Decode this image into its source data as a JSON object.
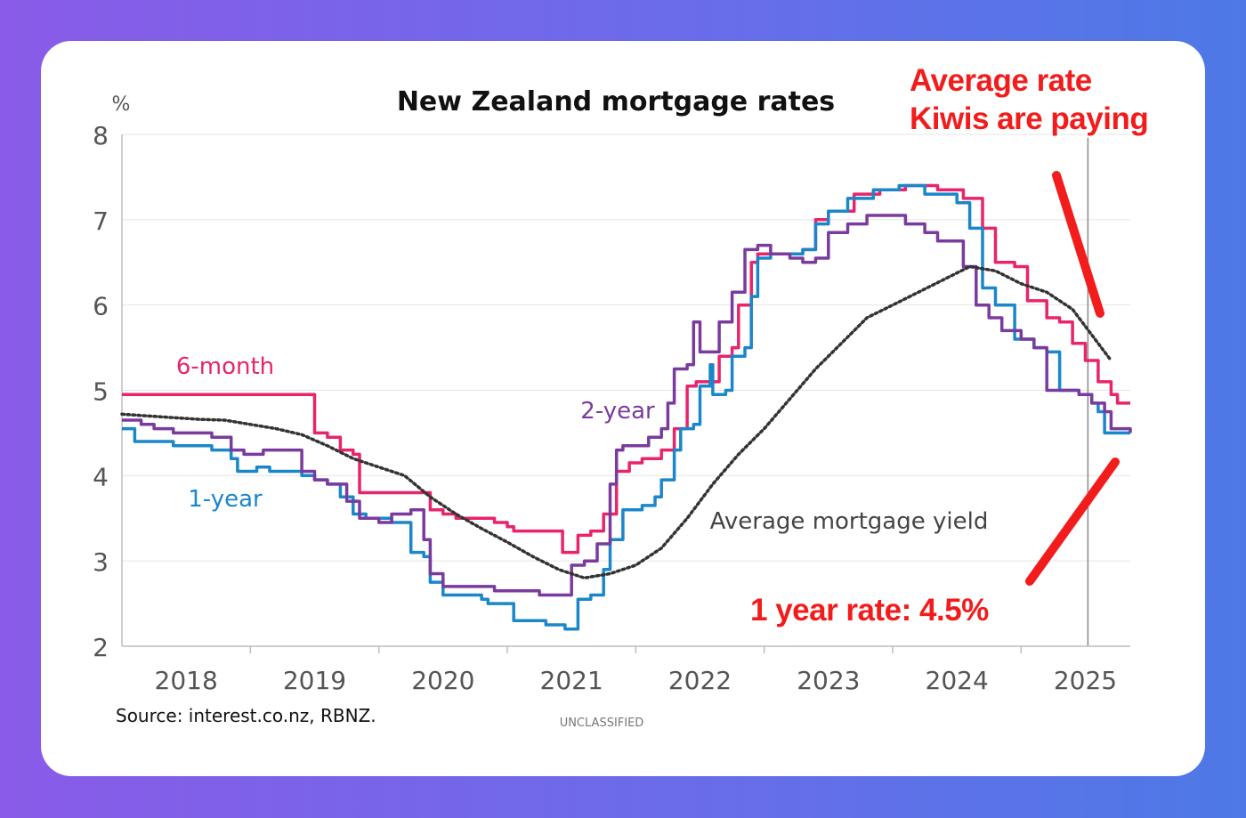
{
  "chart_data": {
    "type": "line",
    "title": "New Zealand mortgage rates",
    "ylabel": "%",
    "ylim": [
      2,
      8
    ],
    "yticks": [
      2,
      3,
      4,
      5,
      6,
      7,
      8
    ],
    "xlim": [
      2017.5,
      2025.35
    ],
    "xticks": [
      {
        "label": "2018",
        "value": 2018.0
      },
      {
        "label": "2019",
        "value": 2019.0
      },
      {
        "label": "2020",
        "value": 2020.0
      },
      {
        "label": "2021",
        "value": 2021.0
      },
      {
        "label": "2022",
        "value": 2022.0
      },
      {
        "label": "2023",
        "value": 2023.0
      },
      {
        "label": "2024",
        "value": 2024.0
      },
      {
        "label": "2025",
        "value": 2025.0
      }
    ],
    "source": "Source: interest.co.nz, RBNZ.",
    "classification": "UNCLASSIFIED",
    "series": [
      {
        "name": "6-month",
        "label": "6-month",
        "color": "#e8246c",
        "style": "step",
        "points": [
          [
            2017.5,
            4.95
          ],
          [
            2018.95,
            4.95
          ],
          [
            2019.0,
            4.5
          ],
          [
            2019.1,
            4.45
          ],
          [
            2019.2,
            4.3
          ],
          [
            2019.3,
            4.25
          ],
          [
            2019.35,
            3.8
          ],
          [
            2019.85,
            3.8
          ],
          [
            2019.9,
            3.6
          ],
          [
            2020.0,
            3.55
          ],
          [
            2020.1,
            3.5
          ],
          [
            2020.4,
            3.45
          ],
          [
            2020.5,
            3.4
          ],
          [
            2020.55,
            3.35
          ],
          [
            2020.9,
            3.35
          ],
          [
            2020.93,
            3.1
          ],
          [
            2021.0,
            3.1
          ],
          [
            2021.05,
            3.3
          ],
          [
            2021.15,
            3.35
          ],
          [
            2021.25,
            3.55
          ],
          [
            2021.35,
            4.05
          ],
          [
            2021.45,
            4.15
          ],
          [
            2021.55,
            4.2
          ],
          [
            2021.7,
            4.3
          ],
          [
            2021.8,
            4.55
          ],
          [
            2021.9,
            5.05
          ],
          [
            2021.97,
            5.1
          ],
          [
            2022.05,
            5.1
          ],
          [
            2022.15,
            5.4
          ],
          [
            2022.25,
            5.5
          ],
          [
            2022.3,
            6.0
          ],
          [
            2022.4,
            6.5
          ],
          [
            2022.45,
            6.6
          ],
          [
            2022.6,
            6.6
          ],
          [
            2022.7,
            6.6
          ],
          [
            2022.8,
            6.65
          ],
          [
            2022.9,
            7.0
          ],
          [
            2023.0,
            7.1
          ],
          [
            2023.2,
            7.3
          ],
          [
            2023.4,
            7.35
          ],
          [
            2023.6,
            7.4
          ],
          [
            2023.85,
            7.35
          ],
          [
            2024.05,
            7.25
          ],
          [
            2024.2,
            6.9
          ],
          [
            2024.3,
            6.5
          ],
          [
            2024.45,
            6.45
          ],
          [
            2024.55,
            6.05
          ],
          [
            2024.7,
            5.85
          ],
          [
            2024.8,
            5.8
          ],
          [
            2024.9,
            5.55
          ],
          [
            2025.0,
            5.35
          ],
          [
            2025.1,
            5.1
          ],
          [
            2025.2,
            4.95
          ],
          [
            2025.25,
            4.85
          ],
          [
            2025.35,
            4.85
          ]
        ]
      },
      {
        "name": "1-year",
        "label": "1-year",
        "color": "#1b87c9",
        "style": "step",
        "points": [
          [
            2017.5,
            4.55
          ],
          [
            2017.6,
            4.4
          ],
          [
            2017.85,
            4.4
          ],
          [
            2017.9,
            4.35
          ],
          [
            2018.2,
            4.3
          ],
          [
            2018.35,
            4.2
          ],
          [
            2018.4,
            4.05
          ],
          [
            2018.55,
            4.1
          ],
          [
            2018.65,
            4.05
          ],
          [
            2018.9,
            4.0
          ],
          [
            2019.0,
            3.95
          ],
          [
            2019.1,
            3.9
          ],
          [
            2019.2,
            3.75
          ],
          [
            2019.3,
            3.55
          ],
          [
            2019.4,
            3.5
          ],
          [
            2019.6,
            3.45
          ],
          [
            2019.7,
            3.45
          ],
          [
            2019.75,
            3.1
          ],
          [
            2019.85,
            3.05
          ],
          [
            2019.9,
            2.75
          ],
          [
            2020.0,
            2.6
          ],
          [
            2020.3,
            2.55
          ],
          [
            2020.35,
            2.5
          ],
          [
            2020.5,
            2.5
          ],
          [
            2020.55,
            2.3
          ],
          [
            2020.75,
            2.3
          ],
          [
            2020.8,
            2.25
          ],
          [
            2020.95,
            2.2
          ],
          [
            2021.0,
            2.2
          ],
          [
            2021.05,
            2.55
          ],
          [
            2021.15,
            2.6
          ],
          [
            2021.25,
            2.9
          ],
          [
            2021.3,
            3.25
          ],
          [
            2021.4,
            3.6
          ],
          [
            2021.55,
            3.65
          ],
          [
            2021.65,
            3.75
          ],
          [
            2021.7,
            3.95
          ],
          [
            2021.8,
            4.3
          ],
          [
            2021.85,
            4.55
          ],
          [
            2021.95,
            4.6
          ],
          [
            2022.0,
            5.05
          ],
          [
            2022.08,
            5.3
          ],
          [
            2022.1,
            4.95
          ],
          [
            2022.2,
            5.0
          ],
          [
            2022.25,
            5.4
          ],
          [
            2022.35,
            5.5
          ],
          [
            2022.4,
            6.1
          ],
          [
            2022.45,
            6.55
          ],
          [
            2022.55,
            6.6
          ],
          [
            2022.7,
            6.6
          ],
          [
            2022.8,
            6.65
          ],
          [
            2022.9,
            6.95
          ],
          [
            2023.0,
            7.1
          ],
          [
            2023.15,
            7.25
          ],
          [
            2023.35,
            7.35
          ],
          [
            2023.55,
            7.4
          ],
          [
            2023.75,
            7.3
          ],
          [
            2024.0,
            7.2
          ],
          [
            2024.1,
            6.9
          ],
          [
            2024.2,
            6.2
          ],
          [
            2024.3,
            6.0
          ],
          [
            2024.45,
            5.6
          ],
          [
            2024.6,
            5.5
          ],
          [
            2024.7,
            5.45
          ],
          [
            2024.8,
            5.0
          ],
          [
            2024.95,
            4.95
          ],
          [
            2025.05,
            4.85
          ],
          [
            2025.1,
            4.75
          ],
          [
            2025.15,
            4.5
          ],
          [
            2025.35,
            4.5
          ]
        ]
      },
      {
        "name": "2-year",
        "label": "2-year",
        "color": "#7a3b9e",
        "style": "step",
        "points": [
          [
            2017.5,
            4.65
          ],
          [
            2017.65,
            4.6
          ],
          [
            2017.75,
            4.55
          ],
          [
            2017.9,
            4.5
          ],
          [
            2018.2,
            4.45
          ],
          [
            2018.35,
            4.3
          ],
          [
            2018.45,
            4.25
          ],
          [
            2018.6,
            4.3
          ],
          [
            2018.9,
            4.05
          ],
          [
            2019.0,
            3.95
          ],
          [
            2019.1,
            3.9
          ],
          [
            2019.25,
            3.7
          ],
          [
            2019.35,
            3.5
          ],
          [
            2019.5,
            3.45
          ],
          [
            2019.6,
            3.55
          ],
          [
            2019.75,
            3.6
          ],
          [
            2019.85,
            3.25
          ],
          [
            2019.9,
            2.85
          ],
          [
            2020.0,
            2.7
          ],
          [
            2020.2,
            2.7
          ],
          [
            2020.4,
            2.65
          ],
          [
            2020.6,
            2.65
          ],
          [
            2020.75,
            2.6
          ],
          [
            2020.9,
            2.6
          ],
          [
            2020.95,
            2.6
          ],
          [
            2021.0,
            2.95
          ],
          [
            2021.1,
            3.0
          ],
          [
            2021.2,
            3.2
          ],
          [
            2021.3,
            3.9
          ],
          [
            2021.35,
            4.3
          ],
          [
            2021.4,
            4.35
          ],
          [
            2021.6,
            4.45
          ],
          [
            2021.7,
            4.55
          ],
          [
            2021.75,
            4.85
          ],
          [
            2021.8,
            5.25
          ],
          [
            2021.9,
            5.3
          ],
          [
            2021.95,
            5.8
          ],
          [
            2022.0,
            5.45
          ],
          [
            2022.1,
            5.45
          ],
          [
            2022.15,
            5.8
          ],
          [
            2022.25,
            6.15
          ],
          [
            2022.35,
            6.65
          ],
          [
            2022.45,
            6.7
          ],
          [
            2022.55,
            6.6
          ],
          [
            2022.7,
            6.55
          ],
          [
            2022.8,
            6.5
          ],
          [
            2022.9,
            6.55
          ],
          [
            2023.0,
            6.85
          ],
          [
            2023.15,
            6.95
          ],
          [
            2023.3,
            7.05
          ],
          [
            2023.45,
            7.05
          ],
          [
            2023.6,
            6.95
          ],
          [
            2023.75,
            6.85
          ],
          [
            2023.85,
            6.75
          ],
          [
            2023.95,
            6.75
          ],
          [
            2024.05,
            6.45
          ],
          [
            2024.15,
            6.0
          ],
          [
            2024.25,
            5.85
          ],
          [
            2024.35,
            5.7
          ],
          [
            2024.5,
            5.6
          ],
          [
            2024.6,
            5.5
          ],
          [
            2024.7,
            5.0
          ],
          [
            2024.8,
            5.0
          ],
          [
            2024.95,
            4.95
          ],
          [
            2025.05,
            4.85
          ],
          [
            2025.15,
            4.75
          ],
          [
            2025.2,
            4.55
          ],
          [
            2025.35,
            4.5
          ]
        ]
      },
      {
        "name": "Average mortgage yield",
        "label": "Average mortgage yield",
        "color": "#333333",
        "style": "dotted",
        "points": [
          [
            2017.5,
            4.72
          ],
          [
            2017.7,
            4.7
          ],
          [
            2017.9,
            4.68
          ],
          [
            2018.1,
            4.66
          ],
          [
            2018.3,
            4.65
          ],
          [
            2018.5,
            4.6
          ],
          [
            2018.7,
            4.55
          ],
          [
            2018.9,
            4.48
          ],
          [
            2019.1,
            4.35
          ],
          [
            2019.3,
            4.2
          ],
          [
            2019.5,
            4.1
          ],
          [
            2019.7,
            4.0
          ],
          [
            2019.9,
            3.75
          ],
          [
            2020.1,
            3.55
          ],
          [
            2020.3,
            3.38
          ],
          [
            2020.5,
            3.22
          ],
          [
            2020.7,
            3.05
          ],
          [
            2020.9,
            2.9
          ],
          [
            2021.1,
            2.8
          ],
          [
            2021.3,
            2.85
          ],
          [
            2021.5,
            2.95
          ],
          [
            2021.7,
            3.15
          ],
          [
            2021.9,
            3.5
          ],
          [
            2022.1,
            3.9
          ],
          [
            2022.3,
            4.25
          ],
          [
            2022.5,
            4.55
          ],
          [
            2022.7,
            4.9
          ],
          [
            2022.9,
            5.25
          ],
          [
            2023.1,
            5.55
          ],
          [
            2023.3,
            5.85
          ],
          [
            2023.5,
            6.0
          ],
          [
            2023.7,
            6.15
          ],
          [
            2023.9,
            6.3
          ],
          [
            2024.1,
            6.45
          ],
          [
            2024.3,
            6.4
          ],
          [
            2024.5,
            6.25
          ],
          [
            2024.7,
            6.15
          ],
          [
            2024.9,
            5.95
          ],
          [
            2025.1,
            5.55
          ],
          [
            2025.2,
            5.35
          ]
        ]
      }
    ],
    "series_labels": [
      {
        "name": "6-month",
        "text": "6-month"
      },
      {
        "name": "2-year",
        "text": "2-year"
      },
      {
        "name": "1-year",
        "text": "1-year"
      },
      {
        "name": "Average mortgage yield",
        "text": "Average mortgage yield"
      }
    ],
    "marker_date": 2025.02,
    "annotations": {
      "top": [
        "Average rate",
        "Kiwis are paying"
      ],
      "bottom": "1 year rate: 4.5%",
      "arrow_color": "#f21c1c"
    }
  }
}
